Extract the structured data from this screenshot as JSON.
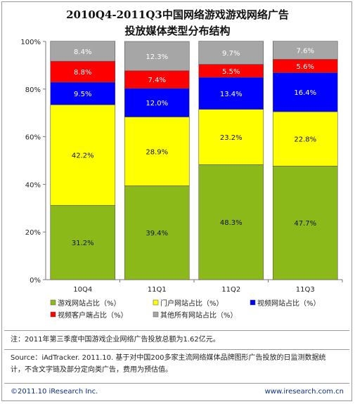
{
  "title_line1": "2010Q4-2011Q3中国网络游戏游戏网络广告",
  "title_line2": "投放媒体类型分布结构",
  "chart_data": {
    "type": "bar",
    "stacked": true,
    "percent": true,
    "categories": [
      "10Q4",
      "11Q1",
      "11Q2",
      "11Q3"
    ],
    "ylim": [
      0,
      100
    ],
    "yticks": [
      "0%",
      "20%",
      "40%",
      "60%",
      "80%",
      "100%"
    ],
    "series": [
      {
        "name": "游戏网站占比（%）",
        "color": "#8cb91a",
        "values": [
          31.2,
          39.4,
          48.3,
          47.7
        ]
      },
      {
        "name": "门户网站占比（%）",
        "color": "#ffff00",
        "values": [
          42.2,
          28.9,
          23.2,
          22.8
        ]
      },
      {
        "name": "视频网站占比（%）",
        "color": "#0000ff",
        "values": [
          9.5,
          12.0,
          13.4,
          16.4
        ]
      },
      {
        "name": "视频客户端占比（%）",
        "color": "#ff0000",
        "values": [
          8.8,
          7.4,
          5.5,
          5.6
        ]
      },
      {
        "name": "其他所有网站占比（%）",
        "color": "#a6a6a6",
        "values": [
          8.4,
          12.3,
          9.7,
          7.6
        ]
      }
    ],
    "labels": [
      [
        "31.2%",
        "39.4%",
        "48.3%",
        "47.7%"
      ],
      [
        "42.2%",
        "28.9%",
        "23.2%",
        "22.8%"
      ],
      [
        "9.5%",
        "12.0%",
        "13.4%",
        "16.4%"
      ],
      [
        "8.8%",
        "7.4%",
        "5.5%",
        "5.6%"
      ],
      [
        "8.4%",
        "12.3%",
        "9.7%",
        "7.6%"
      ]
    ],
    "label_colors": [
      "#111111",
      "#111111",
      "#ffffff",
      "#ffffff",
      "#ffffff"
    ],
    "legend_position": "bottom",
    "grid": false
  },
  "note": "注：2011年第三季度中国游戏企业网络广告投放总额为1.62亿元。",
  "source_line1": "Source：iAdTracker. 2011.10. 基于对中国200多家主流网络媒体品牌图形广告投放的日监测数据统",
  "source_line2": "计，不含文字链及部分定向类广告，费用为预估值。",
  "footer_left": "©2011.10 iResearch Inc.",
  "footer_right": "www.iresearch.com.cn"
}
